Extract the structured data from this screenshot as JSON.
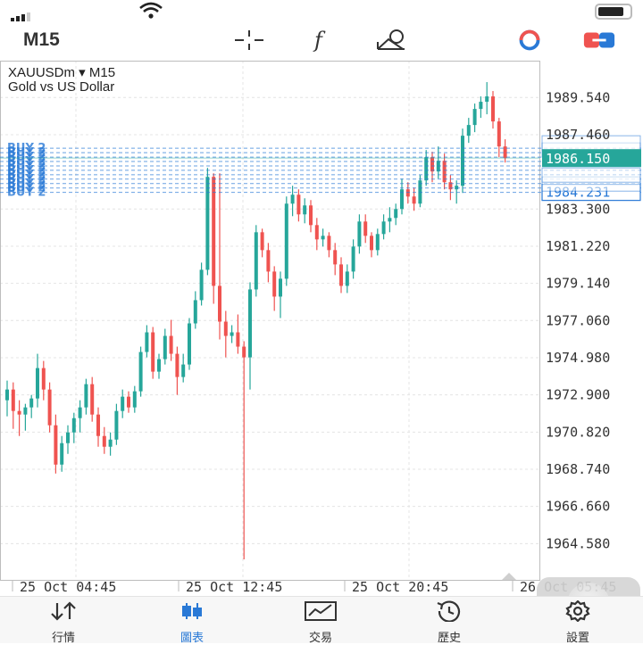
{
  "header": {
    "timeframe": "M15",
    "icons": [
      "crosshair-icon",
      "indicators-icon",
      "objects-icon",
      "trading-toggle-icon",
      "one-click-trading-icon"
    ]
  },
  "chart": {
    "symbol_line": "XAUUSDm ▾ M15",
    "description": "Gold vs US Dollar",
    "price_labels": [
      "1989.540",
      "1987.460",
      "1983.300",
      "1981.220",
      "1979.140",
      "1977.060",
      "1974.980",
      "1972.900",
      "1970.820",
      "1968.740",
      "1966.660",
      "1964.580"
    ],
    "current_price": "1986.150",
    "order_price": "1984.231",
    "order_label": "BUY 2",
    "time_labels": [
      "25 Oct 04:45",
      "25 Oct 12:45",
      "25 Oct 20:45",
      "26 Oct 05:45"
    ],
    "colors": {
      "bull": "#26a69a",
      "bear": "#ef5350",
      "order": "#2979d6",
      "grid": "#e4e4e4"
    }
  },
  "chart_data": {
    "type": "candlestick",
    "instrument": "XAUUSDm",
    "timeframe": "M15",
    "ylim": [
      1962.5,
      1991.6
    ],
    "x_ticks": [
      "25 Oct 04:45",
      "25 Oct 12:45",
      "25 Oct 20:45",
      "26 Oct 05:45"
    ],
    "last_price": 1986.15,
    "ohlc": [
      [
        1972.6,
        1973.7,
        1971.7,
        1973.2
      ],
      [
        1973.2,
        1973.6,
        1971.0,
        1972.0
      ],
      [
        1972.0,
        1972.6,
        1970.6,
        1971.8
      ],
      [
        1971.8,
        1972.4,
        1970.9,
        1972.2
      ],
      [
        1972.2,
        1972.9,
        1971.6,
        1972.7
      ],
      [
        1972.7,
        1975.2,
        1972.2,
        1974.4
      ],
      [
        1974.4,
        1974.8,
        1972.6,
        1973.2
      ],
      [
        1973.2,
        1973.6,
        1970.8,
        1971.2
      ],
      [
        1971.2,
        1971.8,
        1968.5,
        1969.0
      ],
      [
        1969.0,
        1970.6,
        1968.6,
        1970.2
      ],
      [
        1970.2,
        1971.2,
        1969.6,
        1970.8
      ],
      [
        1970.8,
        1971.9,
        1970.2,
        1971.6
      ],
      [
        1971.6,
        1972.6,
        1970.8,
        1972.2
      ],
      [
        1972.2,
        1973.8,
        1971.8,
        1973.5
      ],
      [
        1973.5,
        1973.9,
        1971.4,
        1971.8
      ],
      [
        1971.8,
        1972.2,
        1970.0,
        1970.6
      ],
      [
        1970.6,
        1971.1,
        1969.6,
        1970.0
      ],
      [
        1970.0,
        1970.8,
        1969.5,
        1970.4
      ],
      [
        1970.4,
        1972.4,
        1970.1,
        1972.0
      ],
      [
        1972.0,
        1973.2,
        1971.6,
        1972.8
      ],
      [
        1972.8,
        1973.1,
        1971.9,
        1972.2
      ],
      [
        1972.2,
        1973.4,
        1971.9,
        1973.1
      ],
      [
        1973.1,
        1975.6,
        1972.8,
        1975.3
      ],
      [
        1975.3,
        1976.8,
        1975.0,
        1976.4
      ],
      [
        1976.4,
        1976.7,
        1973.8,
        1974.2
      ],
      [
        1974.2,
        1975.2,
        1973.8,
        1974.9
      ],
      [
        1974.9,
        1976.6,
        1974.6,
        1976.2
      ],
      [
        1976.2,
        1977.1,
        1974.8,
        1975.2
      ],
      [
        1975.2,
        1975.6,
        1972.9,
        1973.9
      ],
      [
        1973.9,
        1975.2,
        1973.6,
        1974.6
      ],
      [
        1974.6,
        1977.2,
        1974.3,
        1976.9
      ],
      [
        1976.9,
        1978.7,
        1976.6,
        1978.2
      ],
      [
        1978.2,
        1980.3,
        1977.9,
        1979.9
      ],
      [
        1979.9,
        1985.6,
        1979.6,
        1985.1
      ],
      [
        1985.1,
        1985.3,
        1978.0,
        1979.0
      ],
      [
        1979.0,
        1985.3,
        1976.0,
        1977.0
      ],
      [
        1977.0,
        1977.6,
        1975.0,
        1976.2
      ],
      [
        1976.2,
        1976.8,
        1975.8,
        1976.4
      ],
      [
        1976.4,
        1977.4,
        1975.2,
        1975.6
      ],
      [
        1975.6,
        1975.9,
        1963.7,
        1975.0
      ],
      [
        1975.0,
        1979.2,
        1973.2,
        1978.8
      ],
      [
        1978.8,
        1982.4,
        1978.4,
        1982.0
      ],
      [
        1982.0,
        1982.2,
        1980.6,
        1981.0
      ],
      [
        1981.0,
        1981.4,
        1979.2,
        1979.8
      ],
      [
        1979.8,
        1980.1,
        1977.6,
        1978.4
      ],
      [
        1978.4,
        1979.8,
        1977.2,
        1979.4
      ],
      [
        1979.4,
        1984.0,
        1979.0,
        1983.6
      ],
      [
        1983.6,
        1984.6,
        1982.9,
        1984.1
      ],
      [
        1984.1,
        1984.4,
        1982.6,
        1983.0
      ],
      [
        1983.0,
        1983.9,
        1982.5,
        1983.5
      ],
      [
        1983.5,
        1983.8,
        1982.0,
        1982.4
      ],
      [
        1982.4,
        1982.8,
        1981.0,
        1981.6
      ],
      [
        1981.6,
        1982.2,
        1981.2,
        1981.8
      ],
      [
        1981.8,
        1982.0,
        1980.6,
        1981.0
      ],
      [
        1981.0,
        1981.4,
        1979.6,
        1980.2
      ],
      [
        1980.2,
        1980.6,
        1978.6,
        1979.0
      ],
      [
        1979.0,
        1980.2,
        1978.6,
        1979.8
      ],
      [
        1979.8,
        1981.6,
        1979.4,
        1981.2
      ],
      [
        1981.2,
        1983.0,
        1980.8,
        1982.6
      ],
      [
        1982.6,
        1983.0,
        1981.4,
        1981.8
      ],
      [
        1981.8,
        1982.0,
        1980.6,
        1981.0
      ],
      [
        1981.0,
        1982.2,
        1980.7,
        1981.9
      ],
      [
        1981.9,
        1983.0,
        1981.6,
        1982.6
      ],
      [
        1982.6,
        1983.4,
        1982.0,
        1982.8
      ],
      [
        1982.8,
        1983.6,
        1982.4,
        1983.3
      ],
      [
        1983.3,
        1985.0,
        1983.0,
        1984.4
      ],
      [
        1984.4,
        1984.8,
        1983.6,
        1984.0
      ],
      [
        1984.0,
        1984.5,
        1983.2,
        1983.6
      ],
      [
        1983.6,
        1985.2,
        1983.4,
        1984.9
      ],
      [
        1984.9,
        1986.6,
        1984.6,
        1986.2
      ],
      [
        1986.2,
        1986.5,
        1984.8,
        1985.4
      ],
      [
        1985.4,
        1986.8,
        1985.0,
        1986.0
      ],
      [
        1986.0,
        1986.4,
        1984.4,
        1984.8
      ],
      [
        1984.8,
        1985.2,
        1983.8,
        1984.4
      ],
      [
        1984.4,
        1984.9,
        1983.6,
        1984.6
      ],
      [
        1984.6,
        1987.8,
        1984.2,
        1987.4
      ],
      [
        1987.4,
        1988.4,
        1987.0,
        1988.0
      ],
      [
        1988.0,
        1989.2,
        1987.6,
        1988.9
      ],
      [
        1988.9,
        1989.6,
        1988.4,
        1989.3
      ],
      [
        1989.3,
        1990.4,
        1988.6,
        1989.6
      ],
      [
        1989.6,
        1989.9,
        1987.8,
        1988.2
      ],
      [
        1988.2,
        1988.4,
        1986.2,
        1986.8
      ],
      [
        1986.8,
        1987.2,
        1985.9,
        1986.15
      ]
    ],
    "orders": [
      {
        "label": "BUY 2",
        "count": 11,
        "price_range": [
          1984.23,
          1986.7
        ]
      }
    ]
  },
  "tabs": [
    {
      "label": "行情",
      "icon": "quotes-icon"
    },
    {
      "label": "圖表",
      "icon": "chart-icon"
    },
    {
      "label": "交易",
      "icon": "trade-icon"
    },
    {
      "label": "歷史",
      "icon": "history-icon"
    },
    {
      "label": "設置",
      "icon": "settings-icon"
    }
  ]
}
